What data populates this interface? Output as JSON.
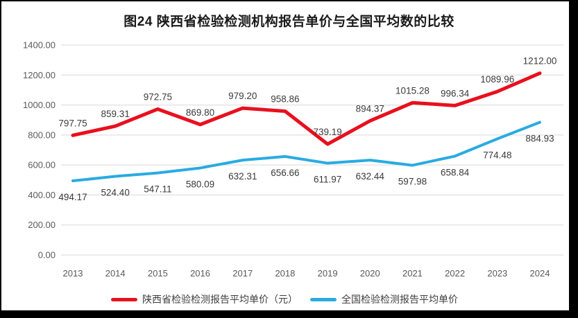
{
  "frame": {
    "background": "#ffffff",
    "border_color": "#000000"
  },
  "chart_data": {
    "type": "line",
    "title": "图24 陕西省检验检测机构报告单价与全国平均数的比较",
    "categories": [
      "2013",
      "2014",
      "2015",
      "2016",
      "2017",
      "2018",
      "2019",
      "2020",
      "2021",
      "2022",
      "2023",
      "2024"
    ],
    "series": [
      {
        "key": "shaanxi",
        "name": "陕西省检验检测报告平均单价（元）",
        "color": "#e8101e",
        "line_width": 5,
        "label_position": "above",
        "values": [
          797.75,
          859.31,
          972.75,
          869.8,
          979.2,
          958.86,
          739.19,
          894.37,
          1015.28,
          996.34,
          1089.96,
          1212.0
        ]
      },
      {
        "key": "national",
        "name": "全国检验检测报告平均单价",
        "color": "#29abe2",
        "line_width": 4,
        "label_position": "below",
        "values": [
          494.17,
          524.4,
          547.11,
          580.09,
          632.31,
          656.66,
          611.97,
          632.44,
          597.98,
          658.84,
          774.48,
          884.93
        ]
      }
    ],
    "ylim": [
      0,
      1400
    ],
    "y_ticks": [
      0,
      200,
      400,
      600,
      800,
      1000,
      1200,
      1400
    ],
    "y_tick_format": "2dp",
    "data_label_format": "2dp",
    "grid": true,
    "gridline_color": "#d9d9d9",
    "axis_text_color": "#595959",
    "data_label_color": "#3a3a3a",
    "legend_position": "bottom"
  }
}
